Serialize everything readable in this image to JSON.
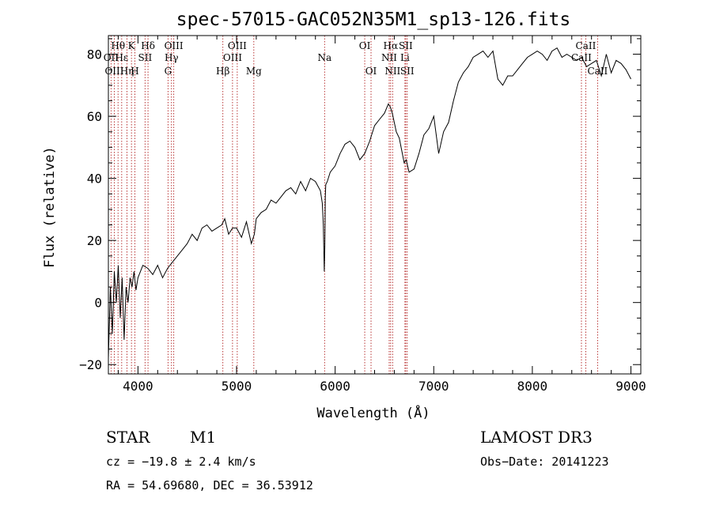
{
  "chart_data": {
    "type": "line",
    "title": "spec-57015-GAC052N35M1_sp13-126.fits",
    "xlabel": "Wavelength (Å)",
    "ylabel": "Flux (relative)",
    "xlim": [
      3700,
      9100
    ],
    "ylim": [
      -23,
      86
    ],
    "xticks": [
      4000,
      5000,
      6000,
      7000,
      8000,
      9000
    ],
    "yticks": [
      -20,
      0,
      20,
      40,
      60,
      80
    ],
    "grid": false,
    "series": [
      {
        "name": "flux",
        "x": [
          3700,
          3720,
          3740,
          3760,
          3780,
          3800,
          3820,
          3840,
          3860,
          3880,
          3900,
          3920,
          3940,
          3960,
          3980,
          4000,
          4050,
          4100,
          4150,
          4200,
          4250,
          4300,
          4350,
          4400,
          4450,
          4500,
          4550,
          4600,
          4650,
          4700,
          4750,
          4800,
          4850,
          4880,
          4920,
          4960,
          5000,
          5050,
          5100,
          5150,
          5180,
          5200,
          5250,
          5300,
          5350,
          5400,
          5450,
          5500,
          5550,
          5600,
          5650,
          5700,
          5750,
          5800,
          5850,
          5870,
          5880,
          5890,
          5895,
          5900,
          5905,
          5920,
          5950,
          6000,
          6050,
          6100,
          6150,
          6200,
          6250,
          6300,
          6350,
          6400,
          6450,
          6500,
          6540,
          6560,
          6580,
          6600,
          6620,
          6650,
          6700,
          6720,
          6750,
          6800,
          6850,
          6900,
          6950,
          7000,
          7050,
          7100,
          7150,
          7200,
          7250,
          7300,
          7350,
          7400,
          7450,
          7500,
          7550,
          7600,
          7650,
          7700,
          7750,
          7800,
          7850,
          7900,
          7950,
          8000,
          8050,
          8100,
          8150,
          8200,
          8250,
          8300,
          8350,
          8400,
          8450,
          8500,
          8550,
          8600,
          8650,
          8700,
          8750,
          8800,
          8850,
          8900,
          8950,
          9000
        ],
        "values": [
          -18,
          5,
          -10,
          10,
          0,
          12,
          -5,
          8,
          -12,
          5,
          0,
          8,
          5,
          10,
          4,
          8,
          12,
          11,
          9,
          12,
          8,
          11,
          13,
          15,
          17,
          19,
          22,
          20,
          24,
          25,
          23,
          24,
          25,
          27,
          22,
          24,
          24,
          21,
          26,
          19,
          22,
          27,
          29,
          30,
          33,
          32,
          34,
          36,
          37,
          35,
          39,
          36,
          40,
          39,
          36,
          32,
          25,
          10,
          18,
          34,
          38,
          39,
          42,
          44,
          48,
          51,
          52,
          50,
          46,
          48,
          52,
          57,
          59,
          61,
          64,
          63,
          61,
          58,
          55,
          53,
          45,
          46,
          42,
          43,
          48,
          54,
          56,
          60,
          48,
          55,
          58,
          65,
          71,
          74,
          76,
          79,
          80,
          81,
          79,
          81,
          72,
          70,
          73,
          73,
          75,
          77,
          79,
          80,
          81,
          80,
          78,
          81,
          82,
          79,
          80,
          79,
          78,
          79,
          76,
          77,
          78,
          73,
          80,
          74,
          78,
          77,
          75,
          72
        ]
      }
    ],
    "spectral_lines": [
      {
        "label": "Hθ",
        "wavelength": 3798,
        "row": 1
      },
      {
        "label": "OII",
        "wavelength": 3727,
        "row": 2
      },
      {
        "label": "OIII",
        "wavelength": 3760,
        "row": 3
      },
      {
        "label": "Hε",
        "wavelength": 3835,
        "row": 2
      },
      {
        "label": "K",
        "wavelength": 3934,
        "row": 1
      },
      {
        "label": "Hη",
        "wavelength": 3889,
        "row": 3
      },
      {
        "label": "SII",
        "wavelength": 4072,
        "row": 2
      },
      {
        "label": "H",
        "wavelength": 3969,
        "row": 3
      },
      {
        "label": "Hδ",
        "wavelength": 4102,
        "row": 1
      },
      {
        "label": "OIII",
        "wavelength": 4363,
        "row": 1
      },
      {
        "label": "Hγ",
        "wavelength": 4340,
        "row": 2
      },
      {
        "label": "G",
        "wavelength": 4305,
        "row": 3
      },
      {
        "label": "Hβ",
        "wavelength": 4861,
        "row": 3
      },
      {
        "label": "OIII",
        "wavelength": 5007,
        "row": 1
      },
      {
        "label": "OIII",
        "wavelength": 4959,
        "row": 2
      },
      {
        "label": "Mg",
        "wavelength": 5175,
        "row": 3
      },
      {
        "label": "Na",
        "wavelength": 5893,
        "row": 2
      },
      {
        "label": "OI",
        "wavelength": 6300,
        "row": 1
      },
      {
        "label": "OI",
        "wavelength": 6364,
        "row": 3
      },
      {
        "label": "Hα",
        "wavelength": 6563,
        "row": 1
      },
      {
        "label": "SII",
        "wavelength": 6716,
        "row": 1
      },
      {
        "label": "NII",
        "wavelength": 6548,
        "row": 2
      },
      {
        "label": "Li",
        "wavelength": 6708,
        "row": 2
      },
      {
        "label": "NII",
        "wavelength": 6583,
        "row": 3
      },
      {
        "label": "SII",
        "wavelength": 6731,
        "row": 3
      },
      {
        "label": "CaII",
        "wavelength": 8542,
        "row": 1
      },
      {
        "label": "CaII",
        "wavelength": 8498,
        "row": 2
      },
      {
        "label": "CaII",
        "wavelength": 8662,
        "row": 3
      }
    ]
  },
  "info": {
    "object_class": "STAR",
    "subclass": "M1",
    "survey": "LAMOST DR3",
    "cz": "cz = −19.8 ± 2.4 km/s",
    "obs_date": "Obs−Date: 20141223",
    "coords": "RA =  54.69680, DEC =  36.53912"
  },
  "colors": {
    "line_marker": "#b22222",
    "spectrum": "#000000",
    "axis": "#000000"
  }
}
